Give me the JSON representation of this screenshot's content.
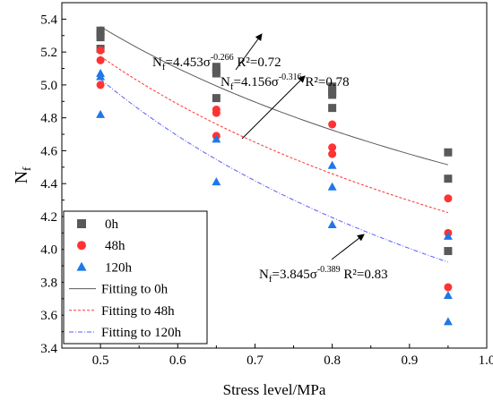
{
  "chart_data": {
    "type": "scatter",
    "title": "",
    "xlabel": "Stress level/MPa",
    "ylabel_main": "N",
    "ylabel_sub": "f",
    "xlim": [
      0.45,
      1.0
    ],
    "ylim": [
      3.4,
      5.5
    ],
    "xticks": [
      "0.5",
      "0.6",
      "0.7",
      "0.8",
      "0.9",
      "1.0"
    ],
    "yticks": [
      "3.4",
      "3.6",
      "3.8",
      "4.0",
      "4.2",
      "4.4",
      "4.6",
      "4.8",
      "5.0",
      "5.2",
      "5.4"
    ],
    "grid": false,
    "legend_position": "bottom-left",
    "series": [
      {
        "name": "0h",
        "marker": "square",
        "color": "#595959",
        "points": [
          [
            0.5,
            5.33
          ],
          [
            0.5,
            5.31
          ],
          [
            0.5,
            5.29
          ],
          [
            0.5,
            5.22
          ],
          [
            0.65,
            5.11
          ],
          [
            0.65,
            5.09
          ],
          [
            0.65,
            5.07
          ],
          [
            0.65,
            4.92
          ],
          [
            0.8,
            4.99
          ],
          [
            0.8,
            4.96
          ],
          [
            0.8,
            4.94
          ],
          [
            0.8,
            4.86
          ],
          [
            0.95,
            4.59
          ],
          [
            0.95,
            4.43
          ],
          [
            0.95,
            3.99
          ]
        ]
      },
      {
        "name": "48h",
        "marker": "circle",
        "color": "#ff3333",
        "points": [
          [
            0.5,
            5.21
          ],
          [
            0.5,
            5.15
          ],
          [
            0.5,
            5.0
          ],
          [
            0.65,
            4.85
          ],
          [
            0.65,
            4.83
          ],
          [
            0.65,
            4.69
          ],
          [
            0.8,
            4.76
          ],
          [
            0.8,
            4.62
          ],
          [
            0.8,
            4.58
          ],
          [
            0.95,
            4.31
          ],
          [
            0.95,
            4.1
          ],
          [
            0.95,
            3.77
          ]
        ]
      },
      {
        "name": "120h",
        "marker": "triangle",
        "color": "#1f77e8",
        "points": [
          [
            0.5,
            5.07
          ],
          [
            0.5,
            5.05
          ],
          [
            0.5,
            4.82
          ],
          [
            0.65,
            4.67
          ],
          [
            0.65,
            4.41
          ],
          [
            0.8,
            4.51
          ],
          [
            0.8,
            4.38
          ],
          [
            0.8,
            4.15
          ],
          [
            0.95,
            4.08
          ],
          [
            0.95,
            3.72
          ],
          [
            0.95,
            3.56
          ]
        ]
      }
    ],
    "fits": [
      {
        "name": "Fitting to 0h",
        "a": 4.453,
        "b": -0.266,
        "color": "#595959",
        "dash": ""
      },
      {
        "name": "Fitting to 48h",
        "a": 4.156,
        "b": -0.316,
        "color": "#ff3333",
        "dash": "3,2"
      },
      {
        "name": "Fitting to 120h",
        "a": 3.845,
        "b": -0.389,
        "color": "#5a5aff",
        "dash": "5,2,1,2"
      }
    ],
    "fit_range": [
      0.5,
      0.95
    ],
    "annotations": [
      {
        "target": "Fitting to 0h",
        "coef": "N_f=4.453σ",
        "exp": "-0.266",
        "r2": " R²=0.72",
        "anchor": [
          0.625,
          5.17
        ]
      },
      {
        "target": "Fitting to 48h",
        "coef": "N_f=4.156σ",
        "exp": "-0.316",
        "r2": " R²=0.78",
        "anchor": [
          0.72,
          4.95
        ]
      },
      {
        "target": "Fitting to 120h",
        "coef": "N_f=3.845σ",
        "exp": "-0.389",
        "r2": " R²=0.83",
        "anchor": [
          0.79,
          3.78
        ]
      }
    ]
  }
}
